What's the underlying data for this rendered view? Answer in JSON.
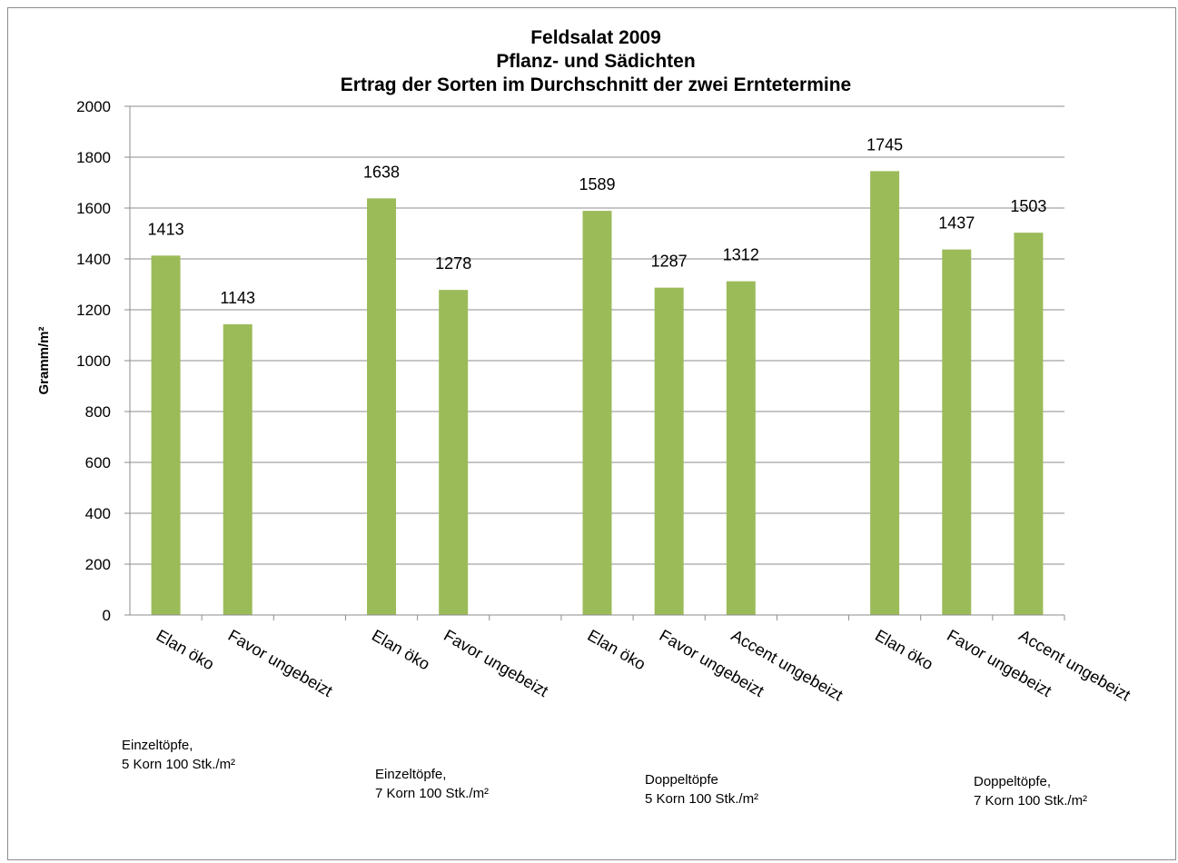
{
  "chart_data": {
    "type": "bar",
    "title": [
      "Feldsalat 2009",
      "Pflanz- und Sädichten",
      "Ertrag der Sorten im Durchschnitt der zwei Erntetermine"
    ],
    "ylabel": "Gramm/m²",
    "ylim": [
      0,
      2000
    ],
    "ytick_step": 200,
    "grid": true,
    "legend": "none",
    "bar_color": "#9bbb59",
    "categories": [
      "Elan öko",
      "Favor ungebeizt",
      "",
      "Elan öko",
      "Favor ungebeizt",
      "",
      "Elan öko",
      "Favor ungebeizt",
      "Accent ungebeizt",
      "",
      "Elan öko",
      "Favor ungebeizt",
      "Accent ungebeizt"
    ],
    "values": [
      1413,
      1143,
      null,
      1638,
      1278,
      null,
      1589,
      1287,
      1312,
      null,
      1745,
      1437,
      1503
    ],
    "groups": [
      {
        "lines": [
          "Einzeltöpfe,",
          "5 Korn 100 Stk./m²"
        ]
      },
      {
        "lines": [
          "Einzeltöpfe,",
          "7 Korn 100 Stk./m²"
        ]
      },
      {
        "lines": [
          "Doppeltöpfe",
          "5 Korn 100 Stk./m²"
        ]
      },
      {
        "lines": [
          "Doppeltöpfe,",
          "7 Korn 100 Stk./m²"
        ]
      }
    ]
  }
}
